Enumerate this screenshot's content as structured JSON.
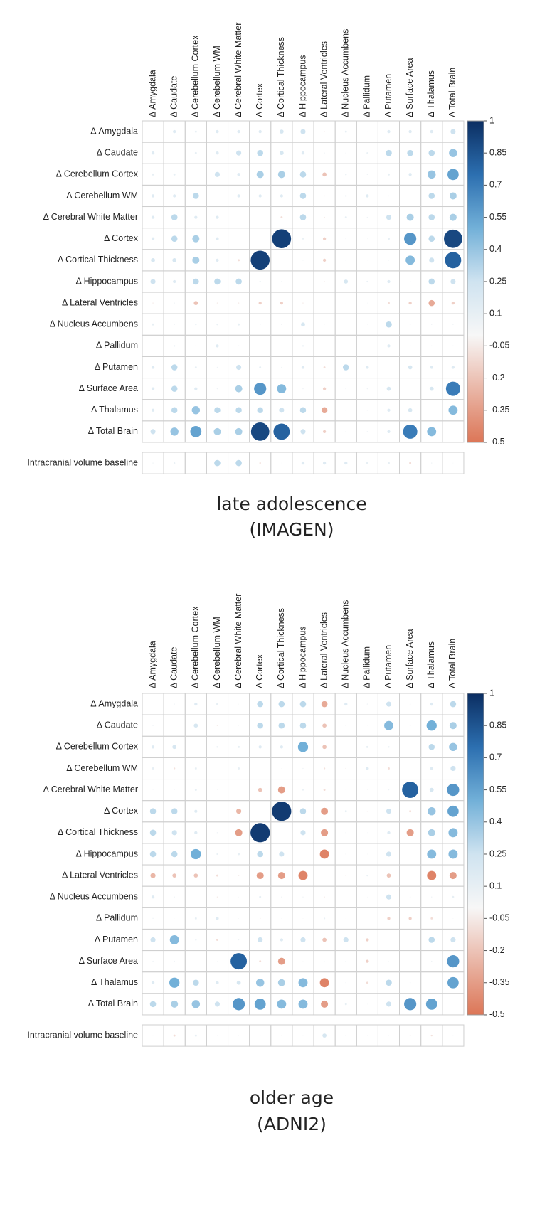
{
  "chart_data": [
    {
      "type": "corrplot",
      "title": "late adolescence",
      "subtitle": "(IMAGEN)",
      "columns": [
        "Δ Amygdala",
        "Δ Caudate",
        "Δ Cerebellum Cortex",
        "Δ Cerebellum WM",
        "Δ Cerebral White Matter",
        "Δ Cortex",
        "Δ Cortical Thickness",
        "Δ Hippocampus",
        "Δ Lateral Ventricles",
        "Δ Nucleus Accumbens",
        "Δ Pallidum",
        "Δ Putamen",
        "Δ Surface Area",
        "Δ Thalamus",
        "Δ Total Brain"
      ],
      "rows": [
        "Δ Amygdala",
        "Δ Caudate",
        "Δ Cerebellum Cortex",
        "Δ Cerebellum WM",
        "Δ Cerebral White Matter",
        "Δ Cortex",
        "Δ Cortical Thickness",
        "Δ Hippocampus",
        "Δ Lateral Ventricles",
        "Δ Nucleus Accumbens",
        "Δ Pallidum",
        "Δ Putamen",
        "Δ Surface Area",
        "Δ Thalamus",
        "Δ Total Brain"
      ],
      "values": [
        [
          null,
          0.15,
          0.1,
          0.15,
          0.15,
          0.15,
          0.2,
          0.25,
          -0.05,
          0.1,
          0.02,
          0.15,
          0.15,
          0.15,
          0.25
        ],
        [
          0.15,
          null,
          0.1,
          0.15,
          0.25,
          0.3,
          0.2,
          0.15,
          0.05,
          0.05,
          0.08,
          0.3,
          0.3,
          0.3,
          0.4
        ],
        [
          0.1,
          0.1,
          null,
          0.25,
          0.15,
          0.35,
          0.35,
          0.3,
          -0.2,
          0.08,
          0.05,
          0.1,
          0.15,
          0.4,
          0.55
        ],
        [
          0.15,
          0.15,
          0.3,
          null,
          0.15,
          0.15,
          0.15,
          0.3,
          -0.05,
          0.08,
          0.15,
          0.05,
          0.05,
          0.3,
          0.35
        ],
        [
          0.15,
          0.3,
          0.15,
          0.15,
          null,
          0,
          -0.1,
          0.3,
          -0.05,
          0.1,
          0.05,
          0.25,
          0.35,
          0.3,
          0.35
        ],
        [
          0.15,
          0.3,
          0.35,
          0.15,
          0,
          null,
          0.93,
          0.08,
          -0.15,
          0.05,
          0.03,
          0.1,
          0.6,
          0.3,
          0.9
        ],
        [
          0.2,
          0.2,
          0.35,
          0.15,
          -0.1,
          0.93,
          null,
          0.05,
          -0.15,
          0.05,
          0.03,
          0.05,
          0.45,
          0.25,
          0.8
        ],
        [
          0.25,
          0.15,
          0.3,
          0.3,
          0.3,
          0.08,
          0.05,
          null,
          -0.05,
          0.2,
          0.08,
          0.15,
          0.05,
          0.3,
          0.25
        ],
        [
          -0.05,
          0.05,
          -0.2,
          -0.05,
          -0.05,
          -0.15,
          -0.15,
          -0.05,
          null,
          0.03,
          0.03,
          -0.1,
          -0.15,
          -0.3,
          -0.15
        ],
        [
          0.1,
          0.05,
          0.08,
          0.08,
          0.1,
          0.05,
          0.05,
          0.2,
          0.03,
          null,
          0.03,
          0.3,
          0.05,
          0.05,
          0.05
        ],
        [
          0.02,
          0.08,
          0.05,
          0.15,
          0.05,
          0.03,
          0.03,
          0.08,
          0.03,
          0.03,
          null,
          0.15,
          0.05,
          0.05,
          0.05
        ],
        [
          0.15,
          0.3,
          0.1,
          0.05,
          0.25,
          0.1,
          0.05,
          0.15,
          -0.1,
          0.3,
          0.15,
          null,
          0.2,
          0.15,
          0.15
        ],
        [
          0.15,
          0.3,
          0.15,
          0.05,
          0.35,
          0.6,
          0.45,
          0.05,
          -0.15,
          0.05,
          0.05,
          0.2,
          null,
          0.2,
          0.7
        ],
        [
          0.15,
          0.3,
          0.4,
          0.3,
          0.3,
          0.3,
          0.25,
          0.3,
          -0.3,
          0.05,
          0.05,
          0.15,
          0.2,
          null,
          0.45
        ],
        [
          0.25,
          0.4,
          0.55,
          0.35,
          0.35,
          0.9,
          0.8,
          0.25,
          -0.15,
          0.05,
          0.05,
          0.15,
          0.7,
          0.45,
          null
        ]
      ],
      "extra_row": {
        "label": "Intracranial volume baseline",
        "values": [
          0.05,
          0.08,
          0,
          0.3,
          0.3,
          -0.08,
          0.02,
          0.15,
          0.15,
          0.15,
          0.1,
          0.1,
          -0.1,
          0.05,
          0.03
        ]
      },
      "colorbar_lim": [
        -0.5,
        1
      ],
      "colorbar_ticks": [
        1,
        0.85,
        0.7,
        0.55,
        0.4,
        0.25,
        0.1,
        -0.05,
        -0.2,
        -0.35,
        -0.5
      ],
      "colorscale": [
        [
          -0.5,
          "#dc7657"
        ],
        [
          0,
          "#f7f7f7"
        ],
        [
          0.25,
          "#cfe3f0"
        ],
        [
          0.5,
          "#72b0d8"
        ],
        [
          0.75,
          "#2c6fb0"
        ],
        [
          1,
          "#0b2e62"
        ]
      ]
    },
    {
      "type": "corrplot",
      "title": "older age",
      "subtitle": "(ADNI2)",
      "columns": [
        "Δ Amygdala",
        "Δ Caudate",
        "Δ Cerebellum Cortex",
        "Δ Cerebellum WM",
        "Δ Cerebral White Matter",
        "Δ Cortex",
        "Δ Cortical Thickness",
        "Δ Hippocampus",
        "Δ Lateral Ventricles",
        "Δ Nucleus Accumbens",
        "Δ Pallidum",
        "Δ Putamen",
        "Δ Surface Area",
        "Δ Thalamus",
        "Δ Total Brain"
      ],
      "rows": [
        "Δ Amygdala",
        "Δ Caudate",
        "Δ Cerebellum Cortex",
        "Δ Cerebellum WM",
        "Δ Cerebral White Matter",
        "Δ Cortex",
        "Δ Cortical Thickness",
        "Δ Hippocampus",
        "Δ Lateral Ventricles",
        "Δ Nucleus Accumbens",
        "Δ Pallidum",
        "Δ Putamen",
        "Δ Surface Area",
        "Δ Thalamus",
        "Δ Total Brain"
      ],
      "values": [
        [
          null,
          0.05,
          0.15,
          0.1,
          0.03,
          0.3,
          0.3,
          0.3,
          -0.3,
          0.15,
          0.05,
          0.25,
          0.05,
          0.15,
          0.3
        ],
        [
          0.05,
          null,
          0.2,
          -0.05,
          0.03,
          0.3,
          0.3,
          0.3,
          -0.2,
          0.05,
          0.02,
          0.45,
          0.05,
          0.5,
          0.35
        ],
        [
          0.15,
          0.2,
          null,
          0.08,
          0.1,
          0.15,
          0.15,
          0.5,
          -0.2,
          0.02,
          0.1,
          0.08,
          0.03,
          0.3,
          0.4
        ],
        [
          0.1,
          -0.08,
          0.1,
          null,
          0.1,
          0.02,
          0.03,
          0.05,
          -0.08,
          -0.05,
          0.15,
          -0.1,
          0.03,
          0.15,
          0.25
        ],
        [
          0.03,
          0.03,
          0.1,
          0.03,
          null,
          -0.2,
          -0.35,
          0.08,
          -0.1,
          0.03,
          0.03,
          0.05,
          0.8,
          0.2,
          0.6
        ],
        [
          0.3,
          0.3,
          0.15,
          0.02,
          -0.25,
          null,
          0.95,
          0.3,
          -0.35,
          0.1,
          -0.05,
          0.25,
          -0.1,
          0.4,
          0.55
        ],
        [
          0.3,
          0.25,
          0.15,
          0.05,
          -0.35,
          0.95,
          null,
          0.25,
          -0.35,
          0.05,
          0.03,
          0.15,
          -0.35,
          0.35,
          0.45
        ],
        [
          0.3,
          0.3,
          0.5,
          0.08,
          0.1,
          0.3,
          0.25,
          null,
          -0.45,
          0.05,
          0.03,
          0.25,
          0.03,
          0.45,
          0.45
        ],
        [
          -0.25,
          -0.2,
          -0.2,
          -0.1,
          -0.05,
          -0.35,
          -0.35,
          -0.45,
          null,
          -0.05,
          0.08,
          -0.2,
          0.03,
          -0.45,
          -0.35
        ],
        [
          0.15,
          0.05,
          0.02,
          -0.05,
          0.03,
          0.1,
          0.05,
          0.05,
          -0.05,
          null,
          0.03,
          0.25,
          0.05,
          0.05,
          0.1
        ],
        [
          0.05,
          0.02,
          0.1,
          0.15,
          0.03,
          -0.05,
          0.03,
          0.03,
          0.08,
          0.03,
          null,
          -0.15,
          -0.15,
          -0.1,
          0.03
        ],
        [
          0.25,
          0.45,
          0.08,
          -0.1,
          0.05,
          0.25,
          0.15,
          0.25,
          -0.2,
          0.25,
          -0.15,
          null,
          0.03,
          0.3,
          0.25
        ],
        [
          0.05,
          0.05,
          0.03,
          0.03,
          0.8,
          -0.1,
          -0.35,
          0.03,
          0.03,
          0.05,
          -0.15,
          0.03,
          null,
          0.05,
          0.6
        ],
        [
          0.15,
          0.5,
          0.3,
          0.15,
          0.2,
          0.4,
          0.35,
          0.45,
          -0.45,
          0.05,
          -0.1,
          0.3,
          0.05,
          null,
          0.55
        ],
        [
          0.3,
          0.35,
          0.4,
          0.25,
          0.6,
          0.55,
          0.45,
          0.45,
          -0.35,
          0.1,
          0.03,
          0.25,
          0.6,
          0.55,
          null
        ]
      ],
      "extra_row": {
        "label": "Intracranial volume baseline",
        "values": [
          0.02,
          -0.1,
          0.1,
          0.03,
          0.03,
          0.03,
          0.03,
          0.03,
          0.2,
          0.05,
          0.03,
          0.03,
          -0.05,
          -0.08,
          0.03
        ]
      },
      "colorbar_lim": [
        -0.5,
        1
      ],
      "colorbar_ticks": [
        1,
        0.85,
        0.7,
        0.55,
        0.4,
        0.25,
        0.1,
        -0.05,
        -0.2,
        -0.35,
        -0.5
      ],
      "colorscale": [
        [
          -0.5,
          "#dc7657"
        ],
        [
          0,
          "#f7f7f7"
        ],
        [
          0.25,
          "#cfe3f0"
        ],
        [
          0.5,
          "#72b0d8"
        ],
        [
          0.75,
          "#2c6fb0"
        ],
        [
          1,
          "#0b2e62"
        ]
      ]
    }
  ]
}
